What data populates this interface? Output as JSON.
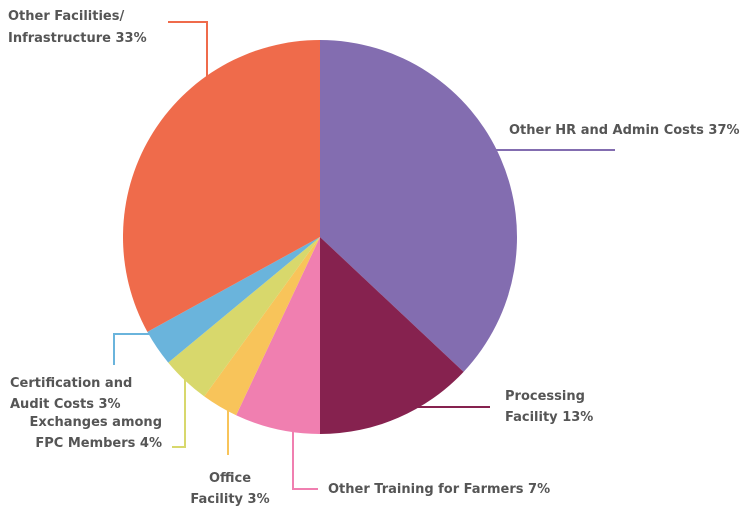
{
  "chart_data": {
    "type": "pie",
    "categories": [
      "Other HR and Admin Costs",
      "Processing Facility",
      "Other Training for Farmers",
      "Office Facility",
      "Exchanges among FPC Members",
      "Certification and Audit Costs",
      "Other Facilities/ Infrastructure"
    ],
    "values": [
      37,
      13,
      7,
      3,
      4,
      3,
      33
    ],
    "value_labels": [
      "37%",
      "13%",
      "7%",
      "3%",
      "4%",
      "3%",
      "33%"
    ],
    "colors": [
      "#836db0",
      "#86224f",
      "#f07fb0",
      "#f8c45a",
      "#d8d86c",
      "#6ab4dc",
      "#ef6b4b"
    ]
  }
}
